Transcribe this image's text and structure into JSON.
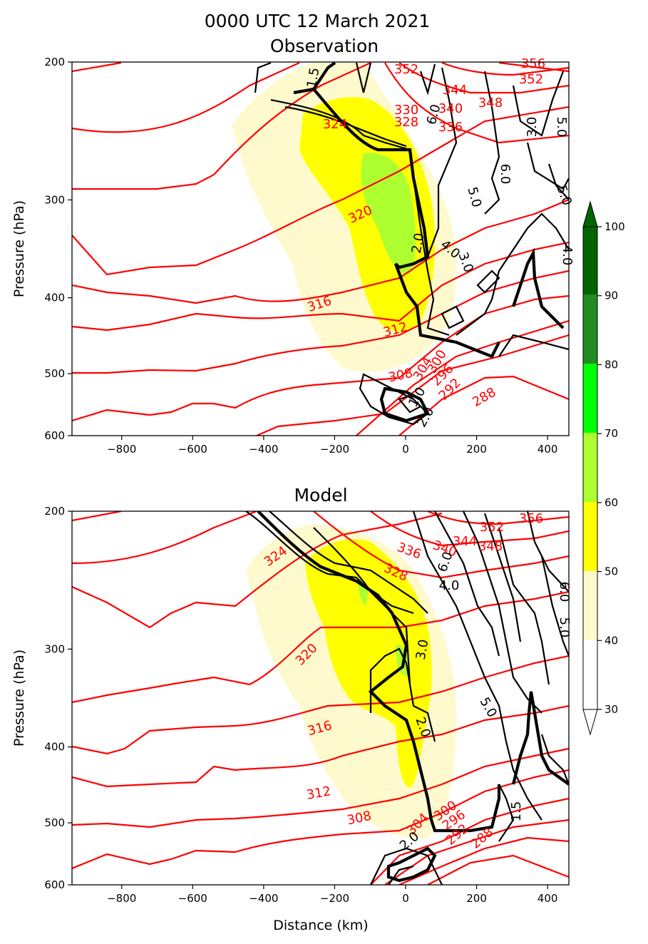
{
  "suptitle": "0000 UTC 12 March 2021",
  "colors": {
    "theta": "#ff0000",
    "contour": "#000000",
    "fill_40_50": "#fffacd",
    "fill_50_60": "#ffff00",
    "fill_60_70": "#adff2f",
    "fill_70_80": "#00ff00",
    "fill_80_90": "#228b22",
    "fill_90_100": "#006400"
  },
  "chart_data": [
    {
      "type": "contour",
      "title": "Observation",
      "xlabel": "",
      "ylabel": "Pressure (hPa)",
      "xlim": [
        -940,
        460
      ],
      "ylim": [
        600,
        200
      ],
      "y_scale": "log",
      "xticks": [
        "−800",
        "−600",
        "−400",
        "−200",
        "0",
        "200",
        "400"
      ],
      "yticks": [
        "200",
        "300",
        "400",
        "500",
        "600"
      ],
      "theta_labels": [
        "352",
        "356",
        "352",
        "344",
        "348",
        "340",
        "330",
        "336",
        "328",
        "324",
        "320",
        "316",
        "312",
        "304",
        "300",
        "296",
        "292",
        "308",
        "288"
      ],
      "contour_labels": [
        "1.5",
        "6.0",
        "3.0",
        "5.0",
        "6.0",
        "5.0",
        "5.0",
        "2.0",
        "4.0",
        "3.0",
        "4.0",
        "1.0",
        "2.0"
      ]
    },
    {
      "type": "contour",
      "title": "Model",
      "xlabel": "Distance (km)",
      "ylabel": "Pressure (hPa)",
      "xlim": [
        -940,
        460
      ],
      "ylim": [
        600,
        200
      ],
      "y_scale": "log",
      "xticks": [
        "−800",
        "−600",
        "−400",
        "−200",
        "0",
        "200",
        "400"
      ],
      "yticks": [
        "200",
        "300",
        "400",
        "500",
        "600"
      ],
      "theta_labels": [
        "356",
        "352",
        "344",
        "348",
        "340",
        "336",
        "324",
        "328",
        "320",
        "316",
        "312",
        "308",
        "304",
        "300",
        "296",
        "292",
        "288"
      ],
      "contour_labels": [
        "6.0",
        "4.0",
        "6.0",
        "5.0",
        "3.0",
        "5.0",
        "2.0",
        "1.5",
        "2.0"
      ]
    }
  ],
  "colorbar": {
    "ticks": [
      "30",
      "40",
      "50",
      "60",
      "70",
      "80",
      "90",
      "100"
    ],
    "extend": "both"
  }
}
